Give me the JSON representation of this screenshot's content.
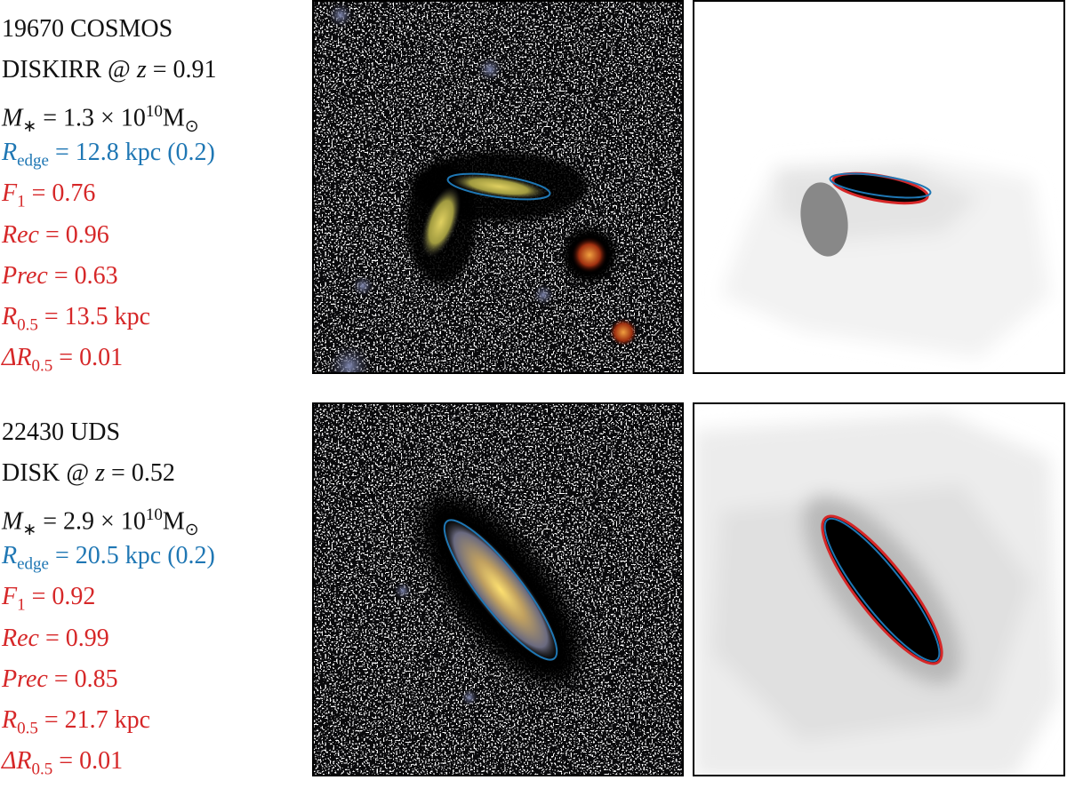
{
  "panels": [
    {
      "lines": [
        {
          "color": "#111111",
          "parts": [
            {
              "text": "19670 COSMOS"
            }
          ]
        },
        {
          "color": "#111111",
          "parts": [
            {
              "text": "DISKIRR @ "
            },
            {
              "text": "z",
              "italic": true
            },
            {
              "text": " = 0.91"
            }
          ]
        },
        {
          "color": "#111111",
          "parts": [
            {
              "text": "M",
              "italic": true
            },
            {
              "text": "∗",
              "sub": true
            },
            {
              "text": " = 1.3 × 10"
            },
            {
              "text": "10",
              "sup": true
            },
            {
              "text": "M"
            },
            {
              "text": "⊙",
              "sub": true
            }
          ]
        },
        {
          "color": "#1f77b4",
          "parts": [
            {
              "text": "R",
              "italic": true
            },
            {
              "text": "edge",
              "sub": true
            },
            {
              "text": " = 12.8 kpc (0.2)"
            }
          ]
        },
        {
          "color": "#d62728",
          "parts": [
            {
              "text": "F",
              "italic": true
            },
            {
              "text": "1",
              "sub": true
            },
            {
              "text": " = 0.76"
            }
          ]
        },
        {
          "color": "#d62728",
          "parts": [
            {
              "text": "Rec",
              "italic": true
            },
            {
              "text": " = 0.96"
            }
          ]
        },
        {
          "color": "#d62728",
          "parts": [
            {
              "text": "Prec",
              "italic": true
            },
            {
              "text": " = 0.63"
            }
          ]
        },
        {
          "color": "#d62728",
          "parts": [
            {
              "text": "R",
              "italic": true
            },
            {
              "text": "0.5",
              "sub": true
            },
            {
              "text": " = 13.5 kpc"
            }
          ]
        },
        {
          "color": "#d62728",
          "parts": [
            {
              "text": "ΔR",
              "italic": true
            },
            {
              "text": "0.5",
              "sub": true
            },
            {
              "text": " = 0.01"
            }
          ]
        }
      ]
    },
    {
      "lines": [
        {
          "color": "#111111",
          "parts": [
            {
              "text": "22430 UDS"
            }
          ]
        },
        {
          "color": "#111111",
          "parts": [
            {
              "text": "DISK @ "
            },
            {
              "text": "z",
              "italic": true
            },
            {
              "text": " = 0.52"
            }
          ]
        },
        {
          "color": "#111111",
          "parts": [
            {
              "text": "M",
              "italic": true
            },
            {
              "text": "∗",
              "sub": true
            },
            {
              "text": " = 2.9 × 10"
            },
            {
              "text": "10",
              "sup": true
            },
            {
              "text": "M"
            },
            {
              "text": "⊙",
              "sub": true
            }
          ]
        },
        {
          "color": "#1f77b4",
          "parts": [
            {
              "text": "R",
              "italic": true
            },
            {
              "text": "edge",
              "sub": true
            },
            {
              "text": " = 20.5 kpc (0.2)"
            }
          ]
        },
        {
          "color": "#d62728",
          "parts": [
            {
              "text": "F",
              "italic": true
            },
            {
              "text": "1",
              "sub": true
            },
            {
              "text": " = 0.92"
            }
          ]
        },
        {
          "color": "#d62728",
          "parts": [
            {
              "text": "Rec",
              "italic": true
            },
            {
              "text": " = 0.99"
            }
          ]
        },
        {
          "color": "#d62728",
          "parts": [
            {
              "text": "Prec",
              "italic": true
            },
            {
              "text": " = 0.85"
            }
          ]
        },
        {
          "color": "#d62728",
          "parts": [
            {
              "text": "R",
              "italic": true
            },
            {
              "text": "0.5",
              "sub": true
            },
            {
              "text": " = 21.7 kpc"
            }
          ]
        },
        {
          "color": "#d62728",
          "parts": [
            {
              "text": "ΔR",
              "italic": true
            },
            {
              "text": "0.5",
              "sub": true
            },
            {
              "text": " = 0.01"
            }
          ]
        }
      ]
    }
  ]
}
